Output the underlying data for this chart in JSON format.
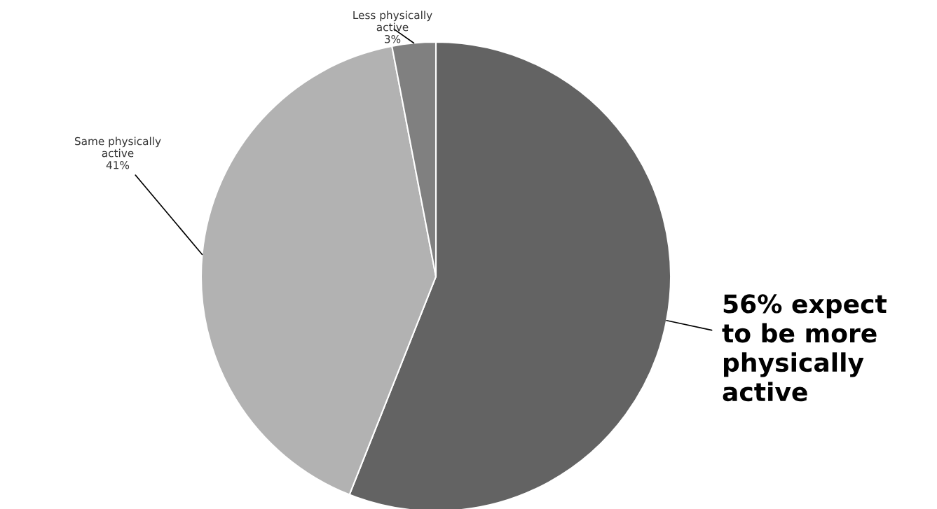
{
  "chart_data": {
    "type": "pie",
    "categories": [
      null,
      "Same physically\nactive",
      "Less physically\nactive"
    ],
    "values": [
      56,
      41,
      3
    ],
    "colors": [
      "#636363",
      "#b2b2b2",
      "#808080"
    ],
    "value_labels": [
      null,
      "41%",
      "3%"
    ],
    "annotations": [
      "56% expect\nto be more\nphysically\nactive"
    ]
  }
}
